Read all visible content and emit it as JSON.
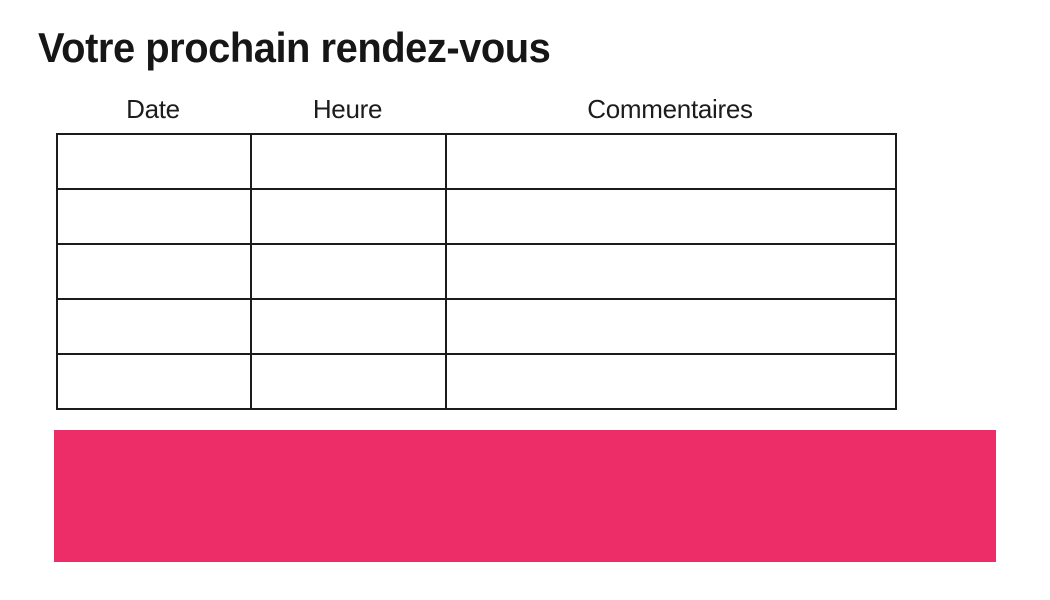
{
  "page": {
    "title": "Votre prochain rendez-vous"
  },
  "table": {
    "columns": [
      {
        "label": "Date"
      },
      {
        "label": "Heure"
      },
      {
        "label": "Commentaires"
      }
    ],
    "rows": [
      {
        "date": "",
        "heure": "",
        "commentaires": ""
      },
      {
        "date": "",
        "heure": "",
        "commentaires": ""
      },
      {
        "date": "",
        "heure": "",
        "commentaires": ""
      },
      {
        "date": "",
        "heure": "",
        "commentaires": ""
      },
      {
        "date": "",
        "heure": "",
        "commentaires": ""
      }
    ]
  },
  "accent_bar": {
    "color": "#ED2D67"
  },
  "colors": {
    "text": "#1a1a1a",
    "table_border": "#1b1b1b",
    "background": "#ffffff"
  }
}
